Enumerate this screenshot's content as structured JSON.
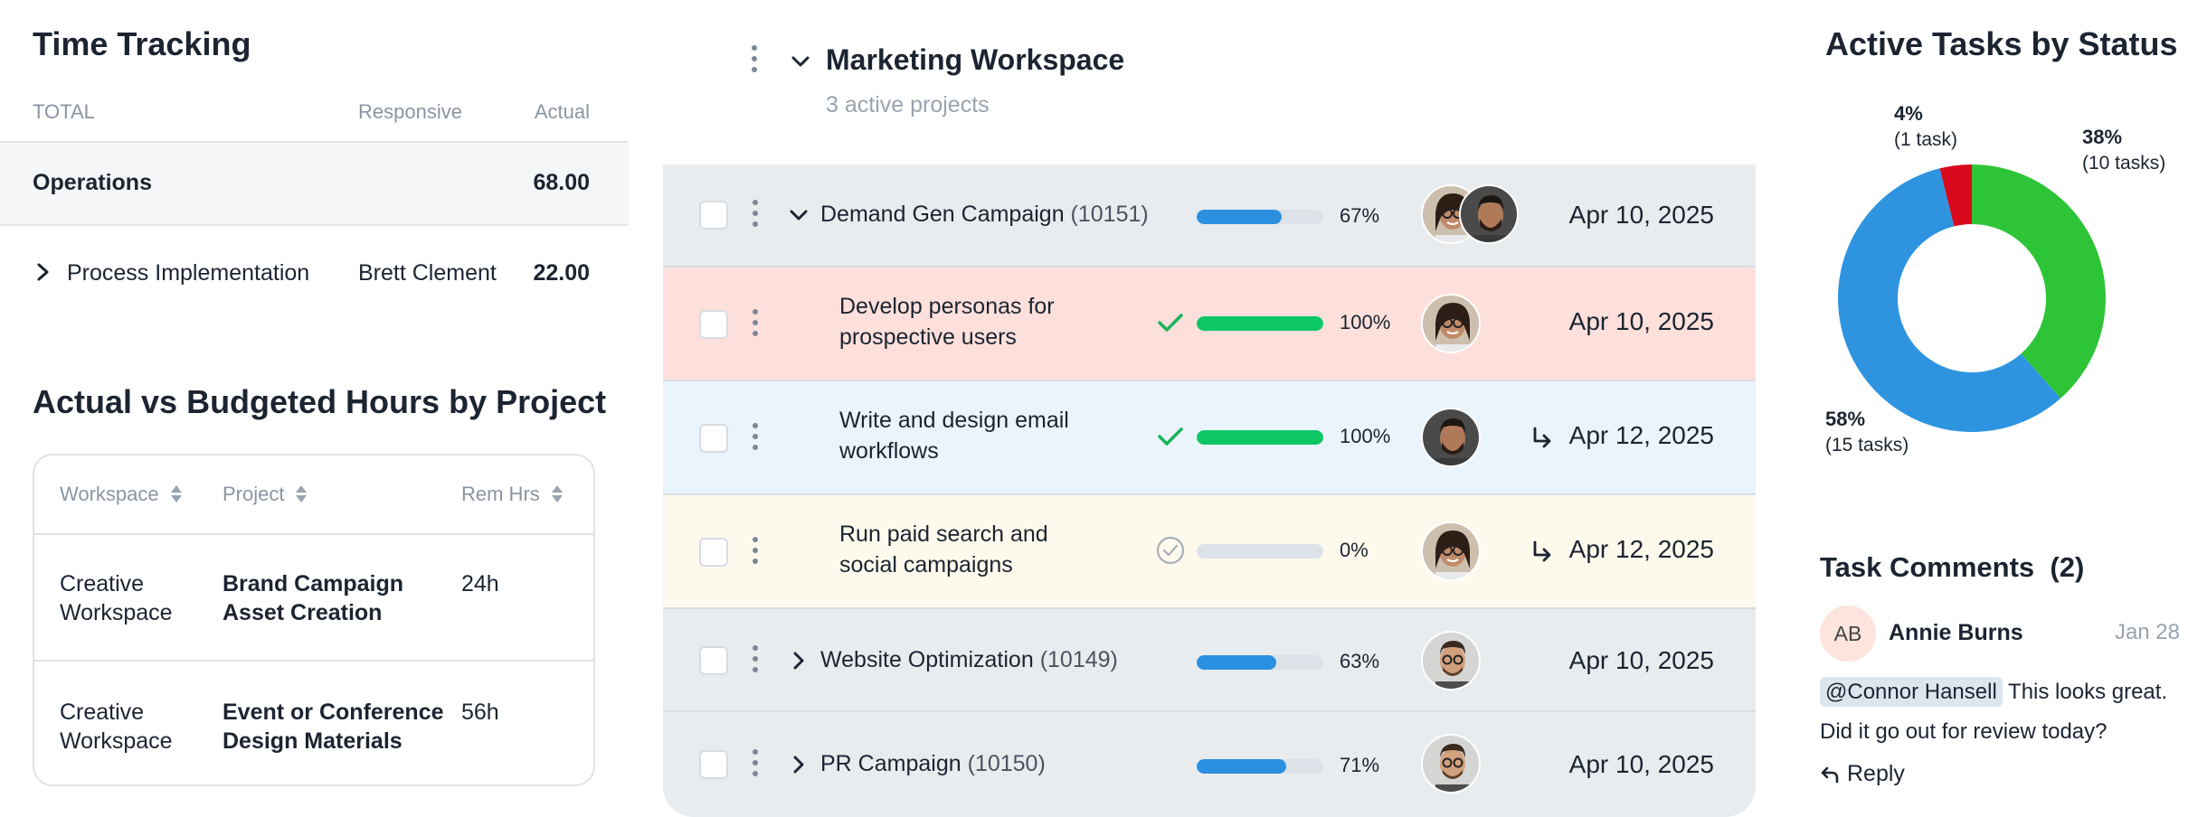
{
  "time_tracking": {
    "title": "Time Tracking",
    "headers": {
      "total": "TOTAL",
      "responsive": "Responsive",
      "actual": "Actual"
    },
    "group": {
      "name": "Operations",
      "actual": "68.00"
    },
    "row": {
      "name": "Process Implementation",
      "responsive": "Brett Clement",
      "actual": "22.00"
    }
  },
  "avb": {
    "title": "Actual vs Budgeted Hours by Project",
    "headers": {
      "workspace": "Workspace",
      "project": "Project",
      "rem_hrs": "Rem Hrs"
    },
    "rows": [
      {
        "workspace_l1": "Creative",
        "workspace_l2": "Workspace",
        "project_l1": "Brand Campaign",
        "project_l2": "Asset Creation",
        "rem_hrs": "24h"
      },
      {
        "workspace_l1": "Creative",
        "workspace_l2": "Workspace",
        "project_l1": "Event or Conference",
        "project_l2": "Design Materials",
        "rem_hrs": "56h"
      }
    ]
  },
  "workspace": {
    "title": "Marketing Workspace",
    "subtitle": "3 active projects",
    "rows": [
      {
        "kind": "project",
        "name": "Demand Gen Campaign",
        "id": "(10151)",
        "progress": 0.67,
        "pct": "67%",
        "date": "Apr 10, 2025",
        "expanded": true
      },
      {
        "kind": "task",
        "name_l1": "Develop personas for",
        "name_l2": "prospective users",
        "status": "complete",
        "progress": 1.0,
        "pct": "100%",
        "date": "Apr 10, 2025"
      },
      {
        "kind": "task",
        "name_l1": "Write and design email",
        "name_l2": "workflows",
        "status": "complete",
        "progress": 1.0,
        "pct": "100%",
        "date": "Apr 12, 2025"
      },
      {
        "kind": "task",
        "name_l1": "Run paid search and",
        "name_l2": "social campaigns",
        "status": "pending",
        "progress": 0.0,
        "pct": "0%",
        "date": "Apr 12, 2025"
      },
      {
        "kind": "project",
        "name": "Website Optimization",
        "id": "(10149)",
        "progress": 0.63,
        "pct": "63%",
        "date": "Apr 10, 2025",
        "expanded": false
      },
      {
        "kind": "project",
        "name": "PR Campaign",
        "id": "(10150)",
        "progress": 0.71,
        "pct": "71%",
        "date": "Apr 10, 2025",
        "expanded": false
      }
    ],
    "colors": {
      "project_bar": "#2b90e0",
      "done_bar": "#0dc765",
      "check": "#18b35a"
    }
  },
  "active_tasks": {
    "title": "Active Tasks by Status",
    "chart_data": {
      "type": "pie",
      "categories": [
        "Green",
        "Blue",
        "Red"
      ],
      "values": [
        10,
        15,
        1
      ],
      "percents": [
        "38%",
        "58%",
        "4%"
      ],
      "counts": [
        "(10 tasks)",
        "(15 tasks)",
        "(1 task)"
      ],
      "colors": [
        "#2ec437",
        "#2e94e0",
        "#d8081d"
      ]
    }
  },
  "comments": {
    "title": "Task Comments",
    "count": "(2)",
    "initials": "AB",
    "author": "Annie Burns",
    "date": "Jan 28",
    "mention": "@Connor Hansell",
    "text": "This looks great. Did it go out for review today?",
    "reply": "Reply"
  }
}
